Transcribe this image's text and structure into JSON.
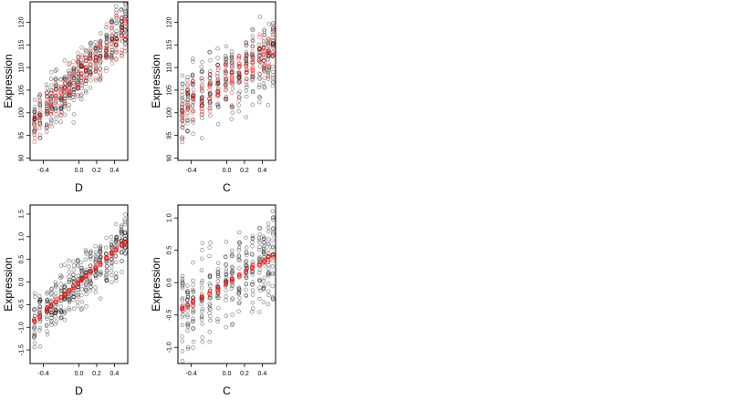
{
  "chart_data": [
    {
      "type": "scatter",
      "xlabel": "D",
      "ylabel": "Expression",
      "xlim": [
        -0.55,
        0.55
      ],
      "ylim": [
        89.5,
        124.5
      ],
      "xticks": [
        "-0.4",
        "0.0",
        "0.2",
        "0.4"
      ],
      "xtick_values": [
        -0.4,
        0.0,
        0.2,
        0.4
      ],
      "yticks": [
        "90",
        "95",
        "100",
        "105",
        "110",
        "115",
        "120"
      ],
      "ytick_values": [
        90,
        95,
        100,
        105,
        110,
        115,
        120
      ],
      "grid": false,
      "series": [
        {
          "color": "#000000",
          "x_levels": [
            -0.5,
            -0.44,
            -0.36,
            -0.31,
            -0.26,
            -0.2,
            -0.16,
            -0.11,
            -0.06,
            -0.01,
            0.03,
            0.08,
            0.13,
            0.19,
            0.24,
            0.31,
            0.37,
            0.42,
            0.48,
            0.52
          ],
          "trend": {
            "intercept": 108.2,
            "slope": 20,
            "spread": 4.2
          },
          "points_per_level": 20
        },
        {
          "color": "#e31a1c",
          "x_levels": [
            -0.5,
            -0.44,
            -0.36,
            -0.31,
            -0.26,
            -0.2,
            -0.16,
            -0.11,
            -0.06,
            -0.01,
            0.03,
            0.08,
            0.13,
            0.19,
            0.24,
            0.31,
            0.37,
            0.42,
            0.48,
            0.52
          ],
          "trend": {
            "intercept": 108.2,
            "slope": 20,
            "spread": 3.2
          },
          "points_per_level": 10
        }
      ]
    },
    {
      "type": "scatter",
      "xlabel": "C",
      "ylabel": "Expression",
      "xlim": [
        -0.55,
        0.55
      ],
      "ylim": [
        89.5,
        124.5
      ],
      "xticks": [
        "-0.4",
        "0.0",
        "0.2",
        "0.4"
      ],
      "xtick_values": [
        -0.4,
        0.0,
        0.2,
        0.4
      ],
      "yticks": [
        "90",
        "95",
        "100",
        "105",
        "110",
        "115",
        "120"
      ],
      "ytick_values": [
        90,
        95,
        100,
        105,
        110,
        115,
        120
      ],
      "grid": false,
      "series": [
        {
          "color": "#000000",
          "x_levels": [
            -0.5,
            -0.44,
            -0.38,
            -0.28,
            -0.19,
            -0.1,
            -0.01,
            0.06,
            0.14,
            0.22,
            0.29,
            0.37,
            0.42,
            0.47,
            0.52
          ],
          "trend": {
            "intercept": 107.5,
            "slope": 11,
            "spread": 6.0
          },
          "points_per_level": 22
        },
        {
          "color": "#e31a1c",
          "x_levels": [
            -0.5,
            -0.44,
            -0.38,
            -0.28,
            -0.19,
            -0.1,
            -0.01,
            0.06,
            0.14,
            0.22,
            0.29,
            0.37,
            0.42,
            0.47,
            0.52
          ],
          "trend": {
            "intercept": 107.5,
            "slope": 11,
            "spread": 3.4
          },
          "points_per_level": 12
        }
      ]
    },
    {
      "type": "scatter",
      "xlabel": "D",
      "ylabel": "Expression",
      "xlim": [
        -0.55,
        0.55
      ],
      "ylim": [
        -1.8,
        1.7
      ],
      "xticks": [
        "-0.4",
        "0.0",
        "0.2",
        "0.4"
      ],
      "xtick_values": [
        -0.4,
        0.0,
        0.2,
        0.4
      ],
      "yticks": [
        "-1.5",
        "-1.0",
        "-0.5",
        "0.0",
        "0.5",
        "1.0",
        "1.5"
      ],
      "ytick_values": [
        -1.5,
        -1.0,
        -0.5,
        0.0,
        0.5,
        1.0,
        1.5
      ],
      "grid": false,
      "series": [
        {
          "color": "#000000",
          "x_levels": [
            -0.5,
            -0.44,
            -0.36,
            -0.31,
            -0.26,
            -0.2,
            -0.16,
            -0.11,
            -0.06,
            -0.01,
            0.03,
            0.08,
            0.13,
            0.19,
            0.24,
            0.31,
            0.37,
            0.42,
            0.48,
            0.52
          ],
          "trend": {
            "intercept": 0.0,
            "slope": 1.7,
            "spread": 0.42
          },
          "points_per_level": 20
        },
        {
          "color": "#e31a1c",
          "x_levels": [
            -0.5,
            -0.44,
            -0.36,
            -0.31,
            -0.26,
            -0.2,
            -0.16,
            -0.11,
            -0.06,
            -0.01,
            0.03,
            0.08,
            0.13,
            0.19,
            0.24,
            0.31,
            0.37,
            0.42,
            0.48,
            0.52
          ],
          "trend": {
            "intercept": 0.0,
            "slope": 1.7,
            "spread": 0.03
          },
          "points_per_level": 8
        }
      ]
    },
    {
      "type": "scatter",
      "xlabel": "C",
      "ylabel": "Expression",
      "xlim": [
        -0.55,
        0.55
      ],
      "ylim": [
        -1.25,
        1.2
      ],
      "xticks": [
        "-0.4",
        "0.0",
        "0.2",
        "0.4"
      ],
      "xtick_values": [
        -0.4,
        0.0,
        0.2,
        0.4
      ],
      "yticks": [
        "-1.0",
        "-0.5",
        "0.0",
        "0.5",
        "1.0"
      ],
      "ytick_values": [
        -1.0,
        -0.5,
        0.0,
        0.5,
        1.0
      ],
      "grid": false,
      "series": [
        {
          "color": "#000000",
          "x_levels": [
            -0.5,
            -0.44,
            -0.38,
            -0.28,
            -0.19,
            -0.1,
            -0.01,
            0.06,
            0.14,
            0.22,
            0.29,
            0.37,
            0.42,
            0.47,
            0.52
          ],
          "trend": {
            "intercept": 0.0,
            "slope": 0.8,
            "spread": 0.45
          },
          "points_per_level": 22
        },
        {
          "color": "#e31a1c",
          "x_levels": [
            -0.5,
            -0.44,
            -0.38,
            -0.28,
            -0.19,
            -0.1,
            -0.01,
            0.06,
            0.14,
            0.22,
            0.29,
            0.37,
            0.42,
            0.47,
            0.52
          ],
          "trend": {
            "intercept": 0.0,
            "slope": 0.8,
            "spread": 0.03
          },
          "points_per_level": 8
        }
      ]
    }
  ]
}
